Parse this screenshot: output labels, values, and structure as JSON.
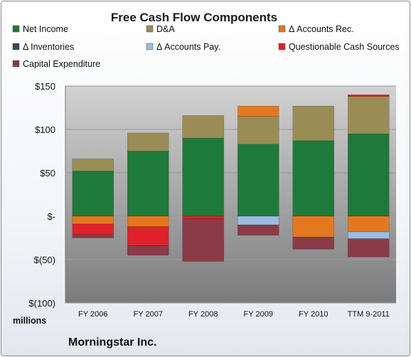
{
  "chart_data": {
    "type": "bar",
    "stacked": true,
    "title": "Free Cash Flow Components",
    "units_label": "millions",
    "source_label": "Morningstar Inc.",
    "categories": [
      "FY 2006",
      "FY 2007",
      "FY 2008",
      "FY 2009",
      "FY 2010",
      "TTM 9-2011"
    ],
    "ylim": [
      -100,
      150
    ],
    "yticks": [
      150,
      100,
      50,
      0,
      -50,
      -100
    ],
    "ytick_labels": [
      "$150",
      "$100",
      "$50",
      "$-",
      "$(50)",
      "$(100)"
    ],
    "grid": true,
    "legend_position": "top",
    "series": [
      {
        "name": "Net Income",
        "color": "#1e7a3a",
        "values": [
          52,
          75,
          90,
          83,
          87,
          95
        ]
      },
      {
        "name": "D&A",
        "color": "#9a8c55",
        "values": [
          14,
          21,
          26,
          32,
          40,
          43
        ]
      },
      {
        "name": "Δ Accounts Rec.",
        "color": "#e3781e",
        "values": [
          -9,
          -12,
          0,
          12,
          -24,
          -18
        ]
      },
      {
        "name": "Δ Inventories",
        "color": "#34495e",
        "values": [
          0,
          0,
          0,
          0,
          0,
          0
        ]
      },
      {
        "name": "Δ Accounts Pay.",
        "color": "#9bbbe0",
        "values": [
          0,
          0,
          0,
          -10,
          0,
          -8
        ]
      },
      {
        "name": "Questionable Cash Sources",
        "color": "#e0202a",
        "values": [
          -12,
          -22,
          -3,
          0,
          0,
          2
        ]
      },
      {
        "name": "Capital Expenditure",
        "color": "#8b3a48",
        "values": [
          -4,
          -11,
          -49,
          -12,
          -14,
          -21
        ]
      }
    ]
  }
}
